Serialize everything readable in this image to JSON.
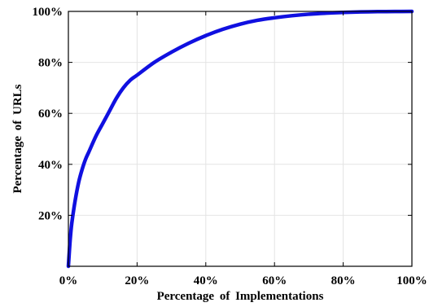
{
  "chart_data": {
    "type": "line",
    "title": "",
    "xlabel": "Percentage of Implementations",
    "ylabel": "Percentage of URLs",
    "xlim": [
      0,
      100
    ],
    "ylim": [
      0,
      100
    ],
    "xticks": [
      "0%",
      "20%",
      "40%",
      "60%",
      "80%",
      "100%"
    ],
    "yticks": [
      "20%",
      "40%",
      "60%",
      "80%",
      "100%"
    ],
    "xtick_values": [
      0,
      20,
      40,
      60,
      80,
      100
    ],
    "ytick_values": [
      20,
      40,
      60,
      80,
      100
    ],
    "grid": true,
    "line_color": "#1010e0",
    "series": [
      {
        "x": [
          0,
          0.5,
          1,
          2,
          3,
          4,
          5,
          6,
          8,
          10,
          12,
          14,
          16,
          18,
          20,
          25,
          30,
          35,
          40,
          45,
          50,
          55,
          60,
          65,
          70,
          75,
          80,
          85,
          90,
          95,
          100
        ],
        "y": [
          0,
          10,
          17,
          26,
          33,
          38,
          42,
          45,
          51,
          56,
          61,
          66,
          70,
          73,
          75,
          80,
          84,
          87.5,
          90.5,
          93,
          95,
          96.5,
          97.5,
          98.3,
          98.9,
          99.3,
          99.6,
          99.8,
          99.9,
          99.95,
          100
        ]
      }
    ]
  }
}
